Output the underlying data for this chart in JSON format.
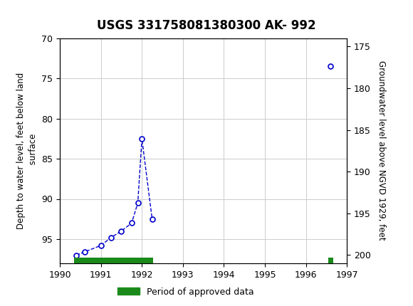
{
  "title": "USGS 331758081380300 AK- 992",
  "ylabel_left": "Depth to water level, feet below land\n surface",
  "ylabel_right": "Groundwater level above NGVD 1929, feet",
  "xlim": [
    1990,
    1997
  ],
  "ylim_left": [
    70,
    98
  ],
  "ylim_right": [
    174,
    201
  ],
  "left_ticks": [
    70,
    75,
    80,
    85,
    90,
    95
  ],
  "right_ticks": [
    175,
    180,
    185,
    190,
    195,
    200
  ],
  "xticks": [
    1990,
    1991,
    1992,
    1993,
    1994,
    1995,
    1996,
    1997
  ],
  "cluster_x": [
    1990.4,
    1990.6,
    1991.0,
    1991.25,
    1991.5,
    1991.75,
    1991.9,
    1992.0,
    1992.25
  ],
  "cluster_y": [
    97.0,
    96.6,
    95.8,
    94.8,
    94.0,
    93.0,
    90.5,
    82.5,
    92.5
  ],
  "isolated_x": [
    1996.6
  ],
  "isolated_y": [
    73.5
  ],
  "green_bar1_start": 1990.35,
  "green_bar1_end": 1992.28,
  "green_bar2_start": 1996.55,
  "green_bar2_end": 1996.67,
  "header_color": "#1a6b3c",
  "plot_bg": "#ffffff",
  "grid_color": "#cccccc",
  "line_color": "#0000cc",
  "marker_color": "#0000cc",
  "green_color": "#1a8a1a",
  "legend_label": "Period of approved data",
  "title_fontsize": 12,
  "axis_label_fontsize": 8.5,
  "tick_fontsize": 9
}
